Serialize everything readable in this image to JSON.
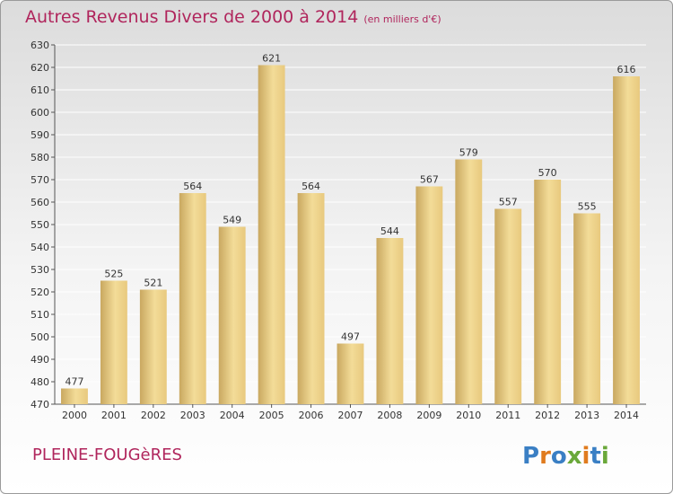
{
  "chart_data": {
    "type": "bar",
    "title": "Autres Revenus Divers de 2000 à 2014",
    "subtitle": "(en milliers d'€)",
    "categories": [
      "2000",
      "2001",
      "2002",
      "2003",
      "2004",
      "2005",
      "2006",
      "2007",
      "2008",
      "2009",
      "2010",
      "2011",
      "2012",
      "2013",
      "2014"
    ],
    "values": [
      477,
      525,
      521,
      564,
      549,
      621,
      564,
      497,
      544,
      567,
      579,
      557,
      570,
      555,
      616
    ],
    "ylim": [
      470,
      630
    ],
    "yticks": [
      470,
      480,
      490,
      500,
      510,
      520,
      530,
      540,
      550,
      560,
      570,
      580,
      590,
      600,
      610,
      620,
      630
    ],
    "xlabel": "",
    "ylabel": "",
    "grid": true,
    "bar_color": "#e8c97e",
    "bar_color_light": "#f3dc98",
    "bar_color_dark": "#c9a860",
    "grid_color": "#ffffff"
  },
  "footer": {
    "commune": "PLEINE-FOUGèRES",
    "logo_text": "Proxiti"
  },
  "colors": {
    "title": "#b0255c",
    "text": "#333333"
  }
}
